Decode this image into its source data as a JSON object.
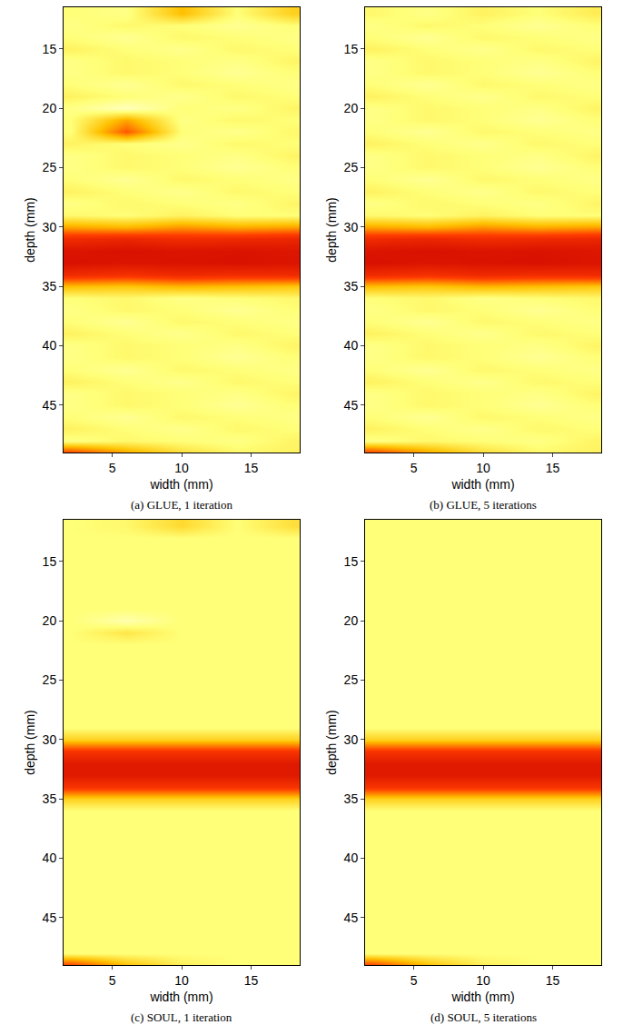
{
  "chart_data": [
    {
      "type": "heatmap",
      "title": "(a) GLUE, 1 iteration",
      "xlabel": "width (mm)",
      "ylabel": "depth (mm)",
      "xlim": [
        1.5,
        18.5
      ],
      "ylim": [
        11.5,
        49
      ],
      "xticks": [
        5,
        10,
        15
      ],
      "yticks": [
        15,
        20,
        25,
        30,
        35,
        40,
        45
      ],
      "color_range": [
        0,
        1
      ],
      "x": [
        2,
        6,
        10,
        14,
        18
      ],
      "y": [
        12,
        13,
        14,
        15,
        16,
        17,
        18,
        19,
        20,
        21,
        22,
        23,
        24,
        25,
        26,
        27,
        28,
        29,
        30,
        31,
        32,
        33,
        34,
        35,
        36,
        37,
        38,
        39,
        40,
        41,
        42,
        43,
        44,
        45,
        46,
        47,
        48,
        49
      ],
      "z": [
        [
          0.8,
          0.82,
          0.6,
          0.8,
          0.65
        ],
        [
          0.82,
          0.78,
          0.8,
          0.84,
          0.8
        ],
        [
          0.8,
          0.84,
          0.78,
          0.8,
          0.82
        ],
        [
          0.76,
          0.8,
          0.83,
          0.78,
          0.8
        ],
        [
          0.82,
          0.78,
          0.8,
          0.82,
          0.77
        ],
        [
          0.82,
          0.78,
          0.8,
          0.84,
          0.8
        ],
        [
          0.8,
          0.84,
          0.78,
          0.8,
          0.82
        ],
        [
          0.76,
          0.8,
          0.83,
          0.78,
          0.8
        ],
        [
          0.82,
          0.9,
          0.8,
          0.82,
          0.77
        ],
        [
          0.8,
          0.55,
          0.82,
          0.78,
          0.8
        ],
        [
          0.8,
          0.4,
          0.8,
          0.83,
          0.78
        ],
        [
          0.76,
          0.8,
          0.83,
          0.78,
          0.8
        ],
        [
          0.82,
          0.78,
          0.8,
          0.82,
          0.77
        ],
        [
          0.82,
          0.78,
          0.8,
          0.84,
          0.8
        ],
        [
          0.8,
          0.84,
          0.78,
          0.8,
          0.82
        ],
        [
          0.76,
          0.8,
          0.83,
          0.78,
          0.8
        ],
        [
          0.82,
          0.78,
          0.8,
          0.82,
          0.77
        ],
        [
          0.78,
          0.8,
          0.76,
          0.8,
          0.8
        ],
        [
          0.55,
          0.58,
          0.52,
          0.56,
          0.54
        ],
        [
          0.25,
          0.22,
          0.26,
          0.24,
          0.22
        ],
        [
          0.12,
          0.1,
          0.12,
          0.11,
          0.13
        ],
        [
          0.1,
          0.12,
          0.11,
          0.1,
          0.12
        ],
        [
          0.25,
          0.28,
          0.24,
          0.26,
          0.25
        ],
        [
          0.6,
          0.62,
          0.58,
          0.6,
          0.62
        ],
        [
          0.8,
          0.78,
          0.82,
          0.8,
          0.78
        ],
        [
          0.82,
          0.78,
          0.8,
          0.84,
          0.8
        ],
        [
          0.8,
          0.84,
          0.78,
          0.8,
          0.82
        ],
        [
          0.76,
          0.8,
          0.83,
          0.78,
          0.8
        ],
        [
          0.82,
          0.78,
          0.8,
          0.82,
          0.77
        ],
        [
          0.82,
          0.78,
          0.8,
          0.84,
          0.8
        ],
        [
          0.8,
          0.84,
          0.78,
          0.8,
          0.82
        ],
        [
          0.76,
          0.8,
          0.83,
          0.78,
          0.8
        ],
        [
          0.82,
          0.78,
          0.8,
          0.82,
          0.77
        ],
        [
          0.82,
          0.78,
          0.8,
          0.84,
          0.8
        ],
        [
          0.8,
          0.84,
          0.78,
          0.8,
          0.82
        ],
        [
          0.76,
          0.8,
          0.83,
          0.78,
          0.8
        ],
        [
          0.82,
          0.78,
          0.8,
          0.82,
          0.77
        ],
        [
          0.35,
          0.55,
          0.7,
          0.78,
          0.76
        ]
      ]
    },
    {
      "type": "heatmap",
      "title": "(b) GLUE, 5 iterations",
      "xlabel": "width (mm)",
      "ylabel": "depth (mm)",
      "xlim": [
        1.5,
        18.5
      ],
      "ylim": [
        11.5,
        49
      ],
      "xticks": [
        5,
        10,
        15
      ],
      "yticks": [
        15,
        20,
        25,
        30,
        35,
        40,
        45
      ],
      "color_range": [
        0,
        1
      ],
      "x": [
        2,
        6,
        10,
        14,
        18
      ],
      "y": [
        12,
        13,
        14,
        15,
        16,
        17,
        18,
        19,
        20,
        21,
        22,
        23,
        24,
        25,
        26,
        27,
        28,
        29,
        30,
        31,
        32,
        33,
        34,
        35,
        36,
        37,
        38,
        39,
        40,
        41,
        42,
        43,
        44,
        45,
        46,
        47,
        48,
        49
      ],
      "z": [
        [
          0.78,
          0.82,
          0.76,
          0.8,
          0.74
        ],
        [
          0.82,
          0.78,
          0.8,
          0.84,
          0.8
        ],
        [
          0.8,
          0.84,
          0.78,
          0.8,
          0.82
        ],
        [
          0.76,
          0.8,
          0.83,
          0.78,
          0.8
        ],
        [
          0.82,
          0.78,
          0.8,
          0.82,
          0.77
        ],
        [
          0.82,
          0.78,
          0.8,
          0.84,
          0.8
        ],
        [
          0.8,
          0.84,
          0.78,
          0.8,
          0.82
        ],
        [
          0.76,
          0.8,
          0.83,
          0.78,
          0.8
        ],
        [
          0.82,
          0.78,
          0.8,
          0.82,
          0.77
        ],
        [
          0.82,
          0.78,
          0.8,
          0.84,
          0.8
        ],
        [
          0.8,
          0.84,
          0.78,
          0.8,
          0.82
        ],
        [
          0.76,
          0.8,
          0.83,
          0.78,
          0.8
        ],
        [
          0.82,
          0.78,
          0.8,
          0.82,
          0.77
        ],
        [
          0.82,
          0.78,
          0.8,
          0.84,
          0.8
        ],
        [
          0.8,
          0.84,
          0.78,
          0.8,
          0.82
        ],
        [
          0.76,
          0.8,
          0.83,
          0.78,
          0.8
        ],
        [
          0.82,
          0.78,
          0.8,
          0.82,
          0.77
        ],
        [
          0.78,
          0.8,
          0.76,
          0.8,
          0.8
        ],
        [
          0.55,
          0.58,
          0.52,
          0.56,
          0.54
        ],
        [
          0.25,
          0.22,
          0.26,
          0.24,
          0.22
        ],
        [
          0.12,
          0.1,
          0.12,
          0.11,
          0.13
        ],
        [
          0.1,
          0.12,
          0.11,
          0.1,
          0.12
        ],
        [
          0.25,
          0.28,
          0.24,
          0.26,
          0.25
        ],
        [
          0.6,
          0.62,
          0.58,
          0.6,
          0.62
        ],
        [
          0.8,
          0.78,
          0.82,
          0.8,
          0.78
        ],
        [
          0.82,
          0.78,
          0.8,
          0.84,
          0.8
        ],
        [
          0.8,
          0.84,
          0.78,
          0.8,
          0.82
        ],
        [
          0.76,
          0.8,
          0.83,
          0.78,
          0.8
        ],
        [
          0.82,
          0.78,
          0.8,
          0.82,
          0.77
        ],
        [
          0.82,
          0.78,
          0.8,
          0.84,
          0.8
        ],
        [
          0.8,
          0.84,
          0.78,
          0.8,
          0.82
        ],
        [
          0.76,
          0.8,
          0.83,
          0.78,
          0.8
        ],
        [
          0.82,
          0.78,
          0.8,
          0.82,
          0.77
        ],
        [
          0.82,
          0.78,
          0.8,
          0.84,
          0.8
        ],
        [
          0.8,
          0.84,
          0.78,
          0.8,
          0.82
        ],
        [
          0.76,
          0.8,
          0.83,
          0.78,
          0.8
        ],
        [
          0.82,
          0.78,
          0.8,
          0.82,
          0.77
        ],
        [
          0.35,
          0.55,
          0.7,
          0.78,
          0.76
        ]
      ]
    },
    {
      "type": "heatmap",
      "title": "(c) SOUL, 1 iteration",
      "xlabel": "width (mm)",
      "ylabel": "depth (mm)",
      "xlim": [
        1.5,
        18.5
      ],
      "ylim": [
        11.5,
        49
      ],
      "xticks": [
        5,
        10,
        15
      ],
      "yticks": [
        15,
        20,
        25,
        30,
        35,
        40,
        45
      ],
      "color_range": [
        0,
        1
      ],
      "x": [
        2,
        6,
        10,
        14,
        18
      ],
      "y": [
        12,
        13,
        14,
        15,
        16,
        17,
        18,
        19,
        20,
        21,
        22,
        23,
        24,
        25,
        26,
        27,
        28,
        29,
        30,
        31,
        32,
        33,
        34,
        35,
        36,
        37,
        38,
        39,
        40,
        41,
        42,
        43,
        44,
        45,
        46,
        47,
        48,
        49
      ],
      "z": [
        [
          0.8,
          0.78,
          0.68,
          0.8,
          0.7
        ],
        [
          0.8,
          0.8,
          0.8,
          0.8,
          0.8
        ],
        [
          0.8,
          0.8,
          0.8,
          0.8,
          0.8
        ],
        [
          0.8,
          0.8,
          0.8,
          0.8,
          0.8
        ],
        [
          0.8,
          0.8,
          0.8,
          0.8,
          0.8
        ],
        [
          0.8,
          0.8,
          0.8,
          0.8,
          0.8
        ],
        [
          0.8,
          0.8,
          0.8,
          0.8,
          0.8
        ],
        [
          0.8,
          0.8,
          0.8,
          0.8,
          0.8
        ],
        [
          0.8,
          0.88,
          0.8,
          0.8,
          0.8
        ],
        [
          0.8,
          0.72,
          0.8,
          0.8,
          0.8
        ],
        [
          0.8,
          0.8,
          0.8,
          0.8,
          0.8
        ],
        [
          0.8,
          0.8,
          0.8,
          0.8,
          0.8
        ],
        [
          0.8,
          0.8,
          0.8,
          0.8,
          0.8
        ],
        [
          0.8,
          0.8,
          0.8,
          0.8,
          0.8
        ],
        [
          0.8,
          0.8,
          0.8,
          0.8,
          0.8
        ],
        [
          0.8,
          0.8,
          0.8,
          0.8,
          0.8
        ],
        [
          0.8,
          0.8,
          0.8,
          0.8,
          0.8
        ],
        [
          0.8,
          0.8,
          0.8,
          0.8,
          0.8
        ],
        [
          0.65,
          0.65,
          0.65,
          0.65,
          0.65
        ],
        [
          0.3,
          0.3,
          0.3,
          0.3,
          0.3
        ],
        [
          0.15,
          0.15,
          0.15,
          0.15,
          0.15
        ],
        [
          0.15,
          0.15,
          0.15,
          0.15,
          0.15
        ],
        [
          0.3,
          0.3,
          0.3,
          0.3,
          0.3
        ],
        [
          0.65,
          0.65,
          0.65,
          0.65,
          0.65
        ],
        [
          0.8,
          0.8,
          0.8,
          0.8,
          0.8
        ],
        [
          0.8,
          0.8,
          0.8,
          0.8,
          0.8
        ],
        [
          0.8,
          0.8,
          0.8,
          0.8,
          0.8
        ],
        [
          0.8,
          0.8,
          0.8,
          0.8,
          0.8
        ],
        [
          0.8,
          0.8,
          0.8,
          0.8,
          0.8
        ],
        [
          0.8,
          0.8,
          0.8,
          0.8,
          0.8
        ],
        [
          0.8,
          0.8,
          0.8,
          0.8,
          0.8
        ],
        [
          0.8,
          0.8,
          0.8,
          0.8,
          0.8
        ],
        [
          0.8,
          0.8,
          0.8,
          0.8,
          0.8
        ],
        [
          0.8,
          0.8,
          0.8,
          0.8,
          0.8
        ],
        [
          0.8,
          0.8,
          0.8,
          0.8,
          0.8
        ],
        [
          0.8,
          0.8,
          0.8,
          0.8,
          0.8
        ],
        [
          0.8,
          0.8,
          0.8,
          0.8,
          0.8
        ],
        [
          0.35,
          0.6,
          0.75,
          0.8,
          0.8
        ]
      ]
    },
    {
      "type": "heatmap",
      "title": "(d) SOUL, 5 iterations",
      "xlabel": "width (mm)",
      "ylabel": "depth (mm)",
      "xlim": [
        1.5,
        18.5
      ],
      "ylim": [
        11.5,
        49
      ],
      "xticks": [
        5,
        10,
        15
      ],
      "yticks": [
        15,
        20,
        25,
        30,
        35,
        40,
        45
      ],
      "color_range": [
        0,
        1
      ],
      "x": [
        2,
        6,
        10,
        14,
        18
      ],
      "y": [
        12,
        13,
        14,
        15,
        16,
        17,
        18,
        19,
        20,
        21,
        22,
        23,
        24,
        25,
        26,
        27,
        28,
        29,
        30,
        31,
        32,
        33,
        34,
        35,
        36,
        37,
        38,
        39,
        40,
        41,
        42,
        43,
        44,
        45,
        46,
        47,
        48,
        49
      ],
      "z": [
        [
          0.8,
          0.8,
          0.8,
          0.8,
          0.8
        ],
        [
          0.8,
          0.8,
          0.8,
          0.8,
          0.8
        ],
        [
          0.8,
          0.8,
          0.8,
          0.8,
          0.8
        ],
        [
          0.8,
          0.8,
          0.8,
          0.8,
          0.8
        ],
        [
          0.8,
          0.8,
          0.8,
          0.8,
          0.8
        ],
        [
          0.8,
          0.8,
          0.8,
          0.8,
          0.8
        ],
        [
          0.8,
          0.8,
          0.8,
          0.8,
          0.8
        ],
        [
          0.8,
          0.8,
          0.8,
          0.8,
          0.8
        ],
        [
          0.8,
          0.8,
          0.8,
          0.8,
          0.8
        ],
        [
          0.8,
          0.8,
          0.8,
          0.8,
          0.8
        ],
        [
          0.8,
          0.8,
          0.8,
          0.8,
          0.8
        ],
        [
          0.8,
          0.8,
          0.8,
          0.8,
          0.8
        ],
        [
          0.8,
          0.8,
          0.8,
          0.8,
          0.8
        ],
        [
          0.8,
          0.8,
          0.8,
          0.8,
          0.8
        ],
        [
          0.8,
          0.8,
          0.8,
          0.8,
          0.8
        ],
        [
          0.8,
          0.8,
          0.8,
          0.8,
          0.8
        ],
        [
          0.8,
          0.8,
          0.8,
          0.8,
          0.8
        ],
        [
          0.8,
          0.8,
          0.8,
          0.8,
          0.8
        ],
        [
          0.65,
          0.65,
          0.65,
          0.65,
          0.65
        ],
        [
          0.3,
          0.3,
          0.3,
          0.3,
          0.3
        ],
        [
          0.15,
          0.15,
          0.15,
          0.15,
          0.15
        ],
        [
          0.15,
          0.15,
          0.15,
          0.15,
          0.15
        ],
        [
          0.3,
          0.3,
          0.3,
          0.3,
          0.3
        ],
        [
          0.65,
          0.65,
          0.65,
          0.65,
          0.65
        ],
        [
          0.8,
          0.8,
          0.8,
          0.8,
          0.8
        ],
        [
          0.8,
          0.8,
          0.8,
          0.8,
          0.8
        ],
        [
          0.8,
          0.8,
          0.8,
          0.8,
          0.8
        ],
        [
          0.8,
          0.8,
          0.8,
          0.8,
          0.8
        ],
        [
          0.8,
          0.8,
          0.8,
          0.8,
          0.8
        ],
        [
          0.8,
          0.8,
          0.8,
          0.8,
          0.8
        ],
        [
          0.8,
          0.8,
          0.8,
          0.8,
          0.8
        ],
        [
          0.8,
          0.8,
          0.8,
          0.8,
          0.8
        ],
        [
          0.8,
          0.8,
          0.8,
          0.8,
          0.8
        ],
        [
          0.8,
          0.8,
          0.8,
          0.8,
          0.8
        ],
        [
          0.8,
          0.8,
          0.8,
          0.8,
          0.8
        ],
        [
          0.8,
          0.8,
          0.8,
          0.8,
          0.8
        ],
        [
          0.8,
          0.8,
          0.8,
          0.8,
          0.8
        ],
        [
          0.35,
          0.6,
          0.75,
          0.8,
          0.8
        ]
      ]
    }
  ]
}
